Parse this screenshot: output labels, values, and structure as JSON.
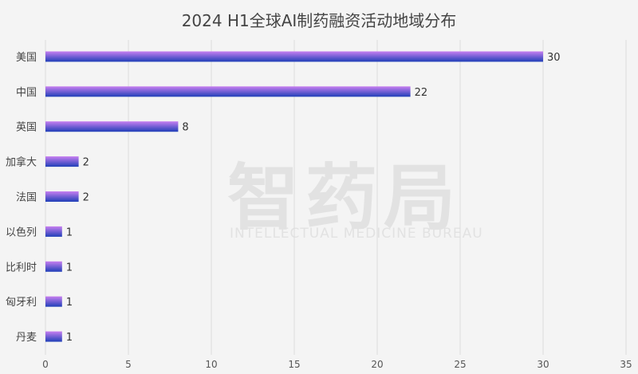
{
  "chart_data": {
    "type": "bar",
    "orientation": "horizontal",
    "title": "2024 H1全球AI制药融资活动地域分布",
    "categories": [
      "美国",
      "中国",
      "英国",
      "加拿大",
      "法国",
      "以色列",
      "比利时",
      "匈牙利",
      "丹麦"
    ],
    "values": [
      30,
      22,
      8,
      2,
      2,
      1,
      1,
      1,
      1
    ],
    "xlim": [
      0,
      35
    ],
    "xticks": [
      0,
      5,
      10,
      15,
      20,
      25,
      30,
      35
    ],
    "grid": "vertical",
    "legend": "none",
    "data_labels": true,
    "colors": {
      "bar_top": "#c77ff0",
      "bar_bottom": "#1f3fb8",
      "grid": "#dddddd",
      "text": "#444444"
    }
  },
  "watermark": {
    "logo": "智药局",
    "subtitle": "INTELLECTUAL MEDICINE BUREAU"
  }
}
